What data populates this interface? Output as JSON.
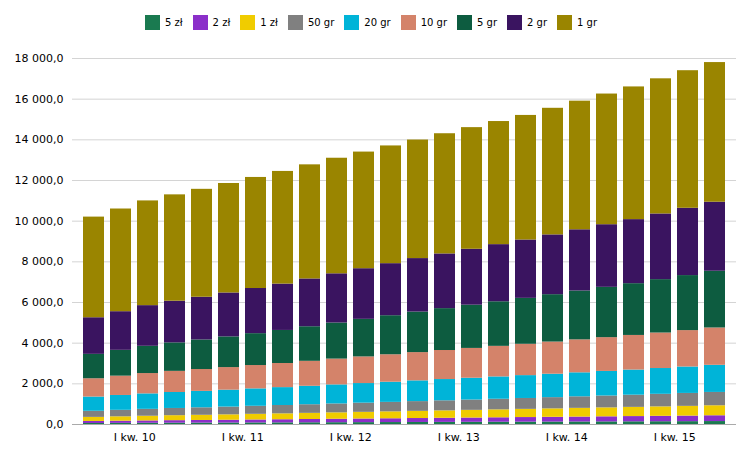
{
  "chart_data": {
    "type": "bar",
    "stacked": true,
    "grid": true,
    "legend": "top",
    "categories": [
      null,
      "I kw. 10",
      null,
      null,
      null,
      "I kw. 11",
      null,
      null,
      null,
      "I kw. 12",
      null,
      null,
      null,
      "I kw. 13",
      null,
      null,
      null,
      "I kw. 14",
      null,
      null,
      null,
      "I kw. 15",
      null,
      null
    ],
    "series": [
      {
        "name": "5 zł",
        "color": "#1a7a50",
        "values": [
          50,
          55,
          60,
          65,
          68,
          72,
          76,
          80,
          84,
          88,
          92,
          96,
          100,
          104,
          108,
          112,
          116,
          120,
          124,
          128,
          132,
          136,
          140,
          145
        ]
      },
      {
        "name": "2 zł",
        "color": "#8b2fc9",
        "values": [
          100,
          108,
          116,
          124,
          130,
          138,
          146,
          154,
          162,
          170,
          178,
          186,
          194,
          202,
          210,
          218,
          226,
          234,
          242,
          250,
          258,
          266,
          274,
          285
        ]
      },
      {
        "name": "1 zł",
        "color": "#f0cc00",
        "values": [
          200,
          215,
          230,
          245,
          255,
          265,
          278,
          290,
          302,
          315,
          328,
          340,
          352,
          365,
          378,
          390,
          402,
          415,
          428,
          440,
          452,
          465,
          478,
          492
        ]
      },
      {
        "name": "50 gr",
        "color": "#808080",
        "values": [
          300,
          320,
          340,
          355,
          368,
          382,
          396,
          410,
          424,
          438,
          452,
          466,
          480,
          494,
          508,
          522,
          536,
          552,
          568,
          584,
          600,
          618,
          636,
          655
        ]
      },
      {
        "name": "20 gr",
        "color": "#00b4d8",
        "values": [
          700,
          730,
          760,
          785,
          808,
          832,
          856,
          880,
          908,
          936,
          964,
          992,
          1020,
          1046,
          1072,
          1098,
          1124,
          1152,
          1180,
          1208,
          1236,
          1268,
          1300,
          1334
        ]
      },
      {
        "name": "10 gr",
        "color": "#d4836a",
        "values": [
          900,
          950,
          1000,
          1040,
          1075,
          1110,
          1148,
          1186,
          1228,
          1270,
          1310,
          1350,
          1390,
          1428,
          1466,
          1504,
          1542,
          1582,
          1622,
          1662,
          1702,
          1746,
          1790,
          1836
        ]
      },
      {
        "name": "5 gr",
        "color": "#0d5c40",
        "values": [
          1200,
          1270,
          1340,
          1400,
          1455,
          1510,
          1568,
          1626,
          1700,
          1774,
          1848,
          1920,
          1994,
          2060,
          2126,
          2192,
          2258,
          2330,
          2402,
          2474,
          2546,
          2626,
          2706,
          2790
        ]
      },
      {
        "name": "2 gr",
        "color": "#3a1460",
        "values": [
          1800,
          1900,
          2000,
          2050,
          2100,
          2160,
          2220,
          2280,
          2350,
          2420,
          2490,
          2560,
          2630,
          2690,
          2750,
          2810,
          2870,
          2940,
          3010,
          3080,
          3150,
          3230,
          3310,
          3395
        ]
      },
      {
        "name": "1 gr",
        "color": "#9a8500",
        "values": [
          4950,
          5050,
          5150,
          5230,
          5307,
          5384,
          5462,
          5540,
          5612,
          5684,
          5736,
          5790,
          5830,
          5911,
          5982,
          6054,
          6126,
          6226,
          6326,
          6426,
          6526,
          6646,
          6766,
          6868
        ]
      }
    ],
    "ylim": [
      0,
      18000
    ],
    "yticks": [
      {
        "value": 0,
        "label": "0,0"
      },
      {
        "value": 2000,
        "label": "2 000,0"
      },
      {
        "value": 4000,
        "label": "4 000,0"
      },
      {
        "value": 6000,
        "label": "6 000,0"
      },
      {
        "value": 8000,
        "label": "8 000,0"
      },
      {
        "value": 10000,
        "label": "10 000,0"
      },
      {
        "value": 12000,
        "label": "12 000,0"
      },
      {
        "value": 14000,
        "label": "14 000,0"
      },
      {
        "value": 16000,
        "label": "16 000,0"
      },
      {
        "value": 18000,
        "label": "18 000,0"
      }
    ]
  }
}
